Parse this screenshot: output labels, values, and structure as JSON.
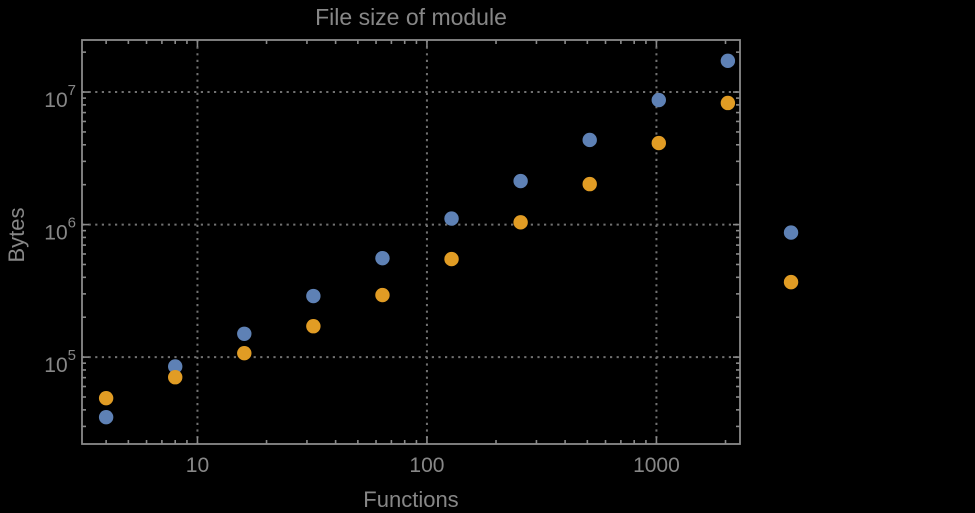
{
  "colors": {
    "background": "#000000",
    "frame": "#8a8a8a",
    "grid": "#717171",
    "text": "#878787",
    "series_blue": "#5e81b5",
    "series_orange": "#e19c24"
  },
  "chart_data": {
    "type": "scatter",
    "title": "File size of module",
    "xlabel": "Functions",
    "ylabel": "Bytes",
    "x_scale": "log",
    "y_scale": "log",
    "grid": "dotted at major ticks",
    "legend": "none",
    "xlim": [
      3.14,
      2313
    ],
    "ylim": [
      22100,
      24700000
    ],
    "xticks": {
      "values": [
        10,
        100,
        1000
      ],
      "labels": [
        "10",
        "100",
        "1000"
      ]
    },
    "yticks": {
      "values": [
        100000,
        1000000,
        10000000
      ],
      "labels": [
        "10^5",
        "10^6",
        "10^7"
      ]
    },
    "x": [
      4,
      8,
      16,
      32,
      64,
      128,
      256,
      512,
      1024,
      2048,
      3860
    ],
    "series": [
      {
        "name": "blue",
        "color": "#5e81b5",
        "values": [
          35200,
          85000,
          150000,
          289000,
          558000,
          1110000,
          2130000,
          4350000,
          8700000,
          17200000,
          870000
        ]
      },
      {
        "name": "orange",
        "color": "#e19c24",
        "values": [
          49000,
          70500,
          107000,
          171000,
          294000,
          549000,
          1040000,
          2020000,
          4120000,
          8270000,
          368000
        ]
      }
    ]
  }
}
